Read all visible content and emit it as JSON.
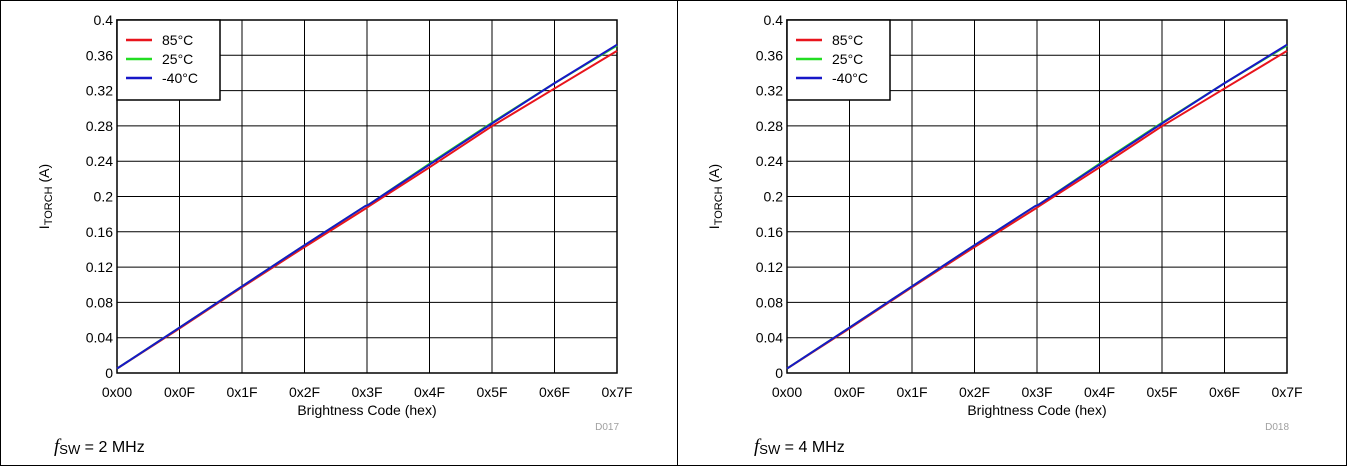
{
  "chart_data": [
    {
      "type": "line",
      "id": "D017",
      "caption": {
        "symbol": "f",
        "subscript": "SW",
        "value": " = 2 MHz"
      },
      "ylabel_main": "I",
      "ylabel_sub": "TORCH",
      "ylabel_unit": " (A)",
      "xlabel": "Brightness Code (hex)",
      "ylim": [
        0,
        0.4
      ],
      "xlim": [
        0,
        127
      ],
      "y_ticks": [
        "0",
        "0.04",
        "0.08",
        "0.12",
        "0.16",
        "0.2",
        "0.24",
        "0.28",
        "0.32",
        "0.36",
        "0.4"
      ],
      "x_ticks": [
        "0x00",
        "0x0F",
        "0x1F",
        "0x2F",
        "0x3F",
        "0x4F",
        "0x5F",
        "0x6F",
        "0x7F"
      ],
      "grid": true,
      "legend_position": "top-left",
      "series": [
        {
          "name": "85°C",
          "color": "#e8141c",
          "x": [
            0,
            15,
            31,
            47,
            63,
            64,
            79,
            95,
            111,
            127
          ],
          "y": [
            0.005,
            0.048,
            0.095,
            0.141,
            0.186,
            0.189,
            0.232,
            0.279,
            0.322,
            0.365
          ]
        },
        {
          "name": "25°C",
          "color": "#22dd22",
          "x": [
            0,
            15,
            31,
            47,
            63,
            64,
            79,
            95,
            111,
            127
          ],
          "y": [
            0.005,
            0.049,
            0.096,
            0.143,
            0.189,
            0.191,
            0.236,
            0.283,
            0.328,
            0.371
          ]
        },
        {
          "name": "-40°C",
          "color": "#1717c8",
          "x": [
            0,
            15,
            31,
            47,
            63,
            64,
            79,
            95,
            111,
            127
          ],
          "y": [
            0.005,
            0.049,
            0.096,
            0.143,
            0.189,
            0.191,
            0.235,
            0.282,
            0.328,
            0.372
          ]
        }
      ]
    },
    {
      "type": "line",
      "id": "D018",
      "caption": {
        "symbol": "f",
        "subscript": "SW",
        "value": " = 4 MHz"
      },
      "ylabel_main": "I",
      "ylabel_sub": "TORCH",
      "ylabel_unit": " (A)",
      "xlabel": "Brightness Code (hex)",
      "ylim": [
        0,
        0.4
      ],
      "xlim": [
        0,
        127
      ],
      "y_ticks": [
        "0",
        "0.04",
        "0.08",
        "0.12",
        "0.16",
        "0.2",
        "0.24",
        "0.28",
        "0.32",
        "0.36",
        "0.4"
      ],
      "x_ticks": [
        "0x00",
        "0x0F",
        "0x1F",
        "0x2F",
        "0x3F",
        "0x4F",
        "0x5F",
        "0x6F",
        "0x7F"
      ],
      "grid": true,
      "legend_position": "top-left",
      "series": [
        {
          "name": "85°C",
          "color": "#e8141c",
          "x": [
            0,
            15,
            31,
            47,
            63,
            64,
            79,
            95,
            111,
            127
          ],
          "y": [
            0.005,
            0.048,
            0.095,
            0.141,
            0.186,
            0.189,
            0.232,
            0.279,
            0.322,
            0.365
          ]
        },
        {
          "name": "25°C",
          "color": "#22dd22",
          "x": [
            0,
            15,
            31,
            47,
            63,
            64,
            79,
            95,
            111,
            127
          ],
          "y": [
            0.005,
            0.049,
            0.096,
            0.143,
            0.189,
            0.191,
            0.236,
            0.283,
            0.328,
            0.371
          ]
        },
        {
          "name": "-40°C",
          "color": "#1717c8",
          "x": [
            0,
            15,
            31,
            47,
            63,
            64,
            79,
            95,
            111,
            127
          ],
          "y": [
            0.005,
            0.049,
            0.096,
            0.143,
            0.189,
            0.191,
            0.235,
            0.282,
            0.328,
            0.372
          ]
        }
      ]
    }
  ]
}
